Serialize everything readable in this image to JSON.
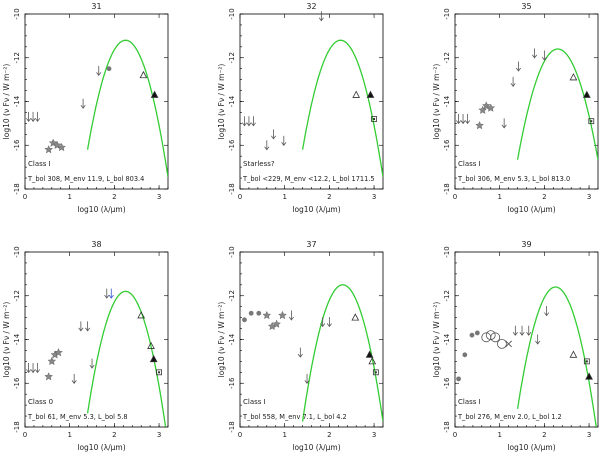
{
  "figure": {
    "xlabel_html": "log10 (λ/μm)",
    "ylabel": "log10 (ν Fν / W m⁻²)"
  },
  "chart_data": [
    {
      "type": "scatter",
      "title": "31",
      "xlim": [
        0,
        3.2
      ],
      "ylim": [
        -18,
        -10
      ],
      "xticks": [
        0,
        1,
        2,
        3
      ],
      "yticks": [
        -18,
        -16,
        -14,
        -12,
        -10
      ],
      "class": "Class I",
      "params": "T_bol 308, M_env 11.9, L_bol 803.4",
      "curve": {
        "peak_x": 2.25,
        "peak_y": -11.2,
        "width": 0.38
      },
      "points": [
        {
          "x": 0.08,
          "y": -14.7,
          "m": "arrow"
        },
        {
          "x": 0.18,
          "y": -14.7,
          "m": "arrow"
        },
        {
          "x": 0.28,
          "y": -14.7,
          "m": "arrow"
        },
        {
          "x": 0.53,
          "y": -16.2,
          "m": "star"
        },
        {
          "x": 0.63,
          "y": -15.9,
          "m": "star"
        },
        {
          "x": 0.72,
          "y": -16.0,
          "m": "star"
        },
        {
          "x": 0.82,
          "y": -16.1,
          "m": "star"
        },
        {
          "x": 1.3,
          "y": -14.1,
          "m": "arrow"
        },
        {
          "x": 1.65,
          "y": -12.6,
          "m": "arrow"
        },
        {
          "x": 1.88,
          "y": -12.5,
          "m": "circle"
        },
        {
          "x": 2.65,
          "y": -12.8,
          "m": "tri-open"
        },
        {
          "x": 2.9,
          "y": -13.7,
          "m": "tri-filled"
        }
      ]
    },
    {
      "type": "scatter",
      "title": "32",
      "xlim": [
        0,
        3.2
      ],
      "ylim": [
        -18,
        -10
      ],
      "xticks": [
        0,
        1,
        2,
        3
      ],
      "yticks": [
        -18,
        -16,
        -14,
        -12,
        -10
      ],
      "class": "Starless?",
      "params": "T_bol <229, M_env <12.2, L_bol 1711.5",
      "curve": {
        "peak_x": 2.25,
        "peak_y": -11.2,
        "width": 0.38
      },
      "points": [
        {
          "x": 0.1,
          "y": -14.9,
          "m": "arrow"
        },
        {
          "x": 0.2,
          "y": -14.9,
          "m": "arrow"
        },
        {
          "x": 0.3,
          "y": -14.9,
          "m": "arrow"
        },
        {
          "x": 0.6,
          "y": -16.0,
          "m": "arrow"
        },
        {
          "x": 0.75,
          "y": -15.5,
          "m": "arrow"
        },
        {
          "x": 0.98,
          "y": -15.8,
          "m": "arrow"
        },
        {
          "x": 1.82,
          "y": -10.1,
          "m": "arrow"
        },
        {
          "x": 2.6,
          "y": -13.7,
          "m": "tri-open"
        },
        {
          "x": 2.92,
          "y": -13.7,
          "m": "tri-filled"
        },
        {
          "x": 3.0,
          "y": -14.8,
          "m": "square"
        }
      ]
    },
    {
      "type": "scatter",
      "title": "35",
      "xlim": [
        0,
        3.2
      ],
      "ylim": [
        -18,
        -10
      ],
      "xticks": [
        0,
        1,
        2,
        3
      ],
      "yticks": [
        -18,
        -16,
        -14,
        -12,
        -10
      ],
      "class": "Class I",
      "params": "T_bol 306, M_env 5.3, L_bol 813.0",
      "curve": {
        "peak_x": 2.3,
        "peak_y": -11.6,
        "width": 0.4
      },
      "points": [
        {
          "x": 0.08,
          "y": -14.8,
          "m": "arrow"
        },
        {
          "x": 0.18,
          "y": -14.8,
          "m": "arrow"
        },
        {
          "x": 0.28,
          "y": -14.8,
          "m": "arrow"
        },
        {
          "x": 0.55,
          "y": -15.1,
          "m": "star"
        },
        {
          "x": 0.62,
          "y": -14.4,
          "m": "star"
        },
        {
          "x": 0.7,
          "y": -14.2,
          "m": "star"
        },
        {
          "x": 0.8,
          "y": -14.3,
          "m": "star"
        },
        {
          "x": 1.1,
          "y": -15.0,
          "m": "arrow"
        },
        {
          "x": 1.3,
          "y": -13.1,
          "m": "arrow"
        },
        {
          "x": 1.42,
          "y": -12.4,
          "m": "arrow"
        },
        {
          "x": 1.78,
          "y": -11.8,
          "m": "arrow"
        },
        {
          "x": 2.0,
          "y": -11.9,
          "m": "arrow"
        },
        {
          "x": 2.65,
          "y": -12.9,
          "m": "tri-open"
        },
        {
          "x": 2.95,
          "y": -13.7,
          "m": "tri-filled"
        },
        {
          "x": 3.05,
          "y": -14.9,
          "m": "square"
        }
      ]
    },
    {
      "type": "scatter",
      "title": "38",
      "xlim": [
        0,
        3.2
      ],
      "ylim": [
        -18,
        -10
      ],
      "xticks": [
        0,
        1,
        2,
        3
      ],
      "yticks": [
        -18,
        -16,
        -14,
        -12,
        -10
      ],
      "class": "Class 0",
      "params": "T_bol 61, M_env 5.3, L_bol 5.8",
      "curve": {
        "peak_x": 2.25,
        "peak_y": -11.8,
        "width": 0.36
      },
      "points": [
        {
          "x": 0.08,
          "y": -15.3,
          "m": "arrow"
        },
        {
          "x": 0.18,
          "y": -15.3,
          "m": "arrow"
        },
        {
          "x": 0.28,
          "y": -15.3,
          "m": "arrow"
        },
        {
          "x": 0.53,
          "y": -15.7,
          "m": "star"
        },
        {
          "x": 0.6,
          "y": -15.0,
          "m": "star"
        },
        {
          "x": 0.67,
          "y": -14.7,
          "m": "star"
        },
        {
          "x": 0.75,
          "y": -14.6,
          "m": "star"
        },
        {
          "x": 1.1,
          "y": -15.8,
          "m": "arrow"
        },
        {
          "x": 1.25,
          "y": -13.4,
          "m": "arrow"
        },
        {
          "x": 1.4,
          "y": -13.4,
          "m": "arrow"
        },
        {
          "x": 1.5,
          "y": -15.1,
          "m": "arrow"
        },
        {
          "x": 1.83,
          "y": -11.9,
          "m": "arrow"
        },
        {
          "x": 1.93,
          "y": -11.9,
          "m": "arrow-blue"
        },
        {
          "x": 2.6,
          "y": -12.9,
          "m": "tri-open"
        },
        {
          "x": 2.82,
          "y": -14.3,
          "m": "tri-open"
        },
        {
          "x": 2.88,
          "y": -14.9,
          "m": "tri-filled"
        },
        {
          "x": 3.0,
          "y": -15.5,
          "m": "square"
        }
      ]
    },
    {
      "type": "scatter",
      "title": "37",
      "xlim": [
        0,
        3.2
      ],
      "ylim": [
        -18,
        -10
      ],
      "xticks": [
        0,
        1,
        2,
        3
      ],
      "yticks": [
        -18,
        -16,
        -14,
        -12,
        -10
      ],
      "class": "Class I",
      "params": "T_bol 558, M_env 7.1, L_bol 4.2",
      "curve": {
        "peak_x": 2.3,
        "peak_y": -11.5,
        "width": 0.36
      },
      "points": [
        {
          "x": 0.1,
          "y": -13.1,
          "m": "circle"
        },
        {
          "x": 0.25,
          "y": -12.8,
          "m": "circle"
        },
        {
          "x": 0.42,
          "y": -12.8,
          "m": "circle"
        },
        {
          "x": 0.6,
          "y": -12.9,
          "m": "star"
        },
        {
          "x": 0.72,
          "y": -13.4,
          "m": "star"
        },
        {
          "x": 0.82,
          "y": -13.3,
          "m": "star"
        },
        {
          "x": 0.95,
          "y": -12.9,
          "m": "star"
        },
        {
          "x": 1.15,
          "y": -12.9,
          "m": "arrow"
        },
        {
          "x": 1.35,
          "y": -14.6,
          "m": "arrow"
        },
        {
          "x": 1.5,
          "y": -15.8,
          "m": "arrow"
        },
        {
          "x": 1.85,
          "y": -13.2,
          "m": "arrow"
        },
        {
          "x": 2.0,
          "y": -13.2,
          "m": "arrow"
        },
        {
          "x": 2.58,
          "y": -13.0,
          "m": "tri-open"
        },
        {
          "x": 2.9,
          "y": -14.7,
          "m": "tri-filled"
        },
        {
          "x": 2.96,
          "y": -15.0,
          "m": "tri-open"
        },
        {
          "x": 3.04,
          "y": -15.5,
          "m": "square"
        }
      ]
    },
    {
      "type": "scatter",
      "title": "39",
      "xlim": [
        0,
        3.2
      ],
      "ylim": [
        -18,
        -10
      ],
      "xticks": [
        0,
        1,
        2,
        3
      ],
      "yticks": [
        -18,
        -16,
        -14,
        -12,
        -10
      ],
      "class": "Class I",
      "params": "T_bol 276, M_env 2.0, L_bol 1.2",
      "curve": {
        "peak_x": 2.25,
        "peak_y": -11.6,
        "width": 0.36
      },
      "points": [
        {
          "x": 0.08,
          "y": -15.8,
          "m": "circle"
        },
        {
          "x": 0.22,
          "y": -14.7,
          "m": "circle"
        },
        {
          "x": 0.38,
          "y": -13.8,
          "m": "circle"
        },
        {
          "x": 0.5,
          "y": -13.7,
          "m": "circle"
        },
        {
          "x": 0.7,
          "y": -13.9,
          "m": "ring"
        },
        {
          "x": 0.8,
          "y": -13.8,
          "m": "ring"
        },
        {
          "x": 0.9,
          "y": -13.9,
          "m": "ring"
        },
        {
          "x": 1.05,
          "y": -14.2,
          "m": "ring"
        },
        {
          "x": 1.2,
          "y": -14.2,
          "m": "cross"
        },
        {
          "x": 1.35,
          "y": -13.6,
          "m": "arrow"
        },
        {
          "x": 1.5,
          "y": -13.6,
          "m": "arrow"
        },
        {
          "x": 1.65,
          "y": -13.6,
          "m": "arrow"
        },
        {
          "x": 1.85,
          "y": -14.0,
          "m": "arrow"
        },
        {
          "x": 2.05,
          "y": -12.7,
          "m": "arrow"
        },
        {
          "x": 2.65,
          "y": -14.7,
          "m": "tri-open"
        },
        {
          "x": 2.95,
          "y": -15.0,
          "m": "square"
        },
        {
          "x": 3.0,
          "y": -15.7,
          "m": "tri-filled"
        }
      ]
    }
  ],
  "colors": {
    "curve": "#33cc33",
    "marker": "#777777",
    "arrow": "#555555",
    "arrow_blue": "#3355cc",
    "text": "#222222"
  }
}
